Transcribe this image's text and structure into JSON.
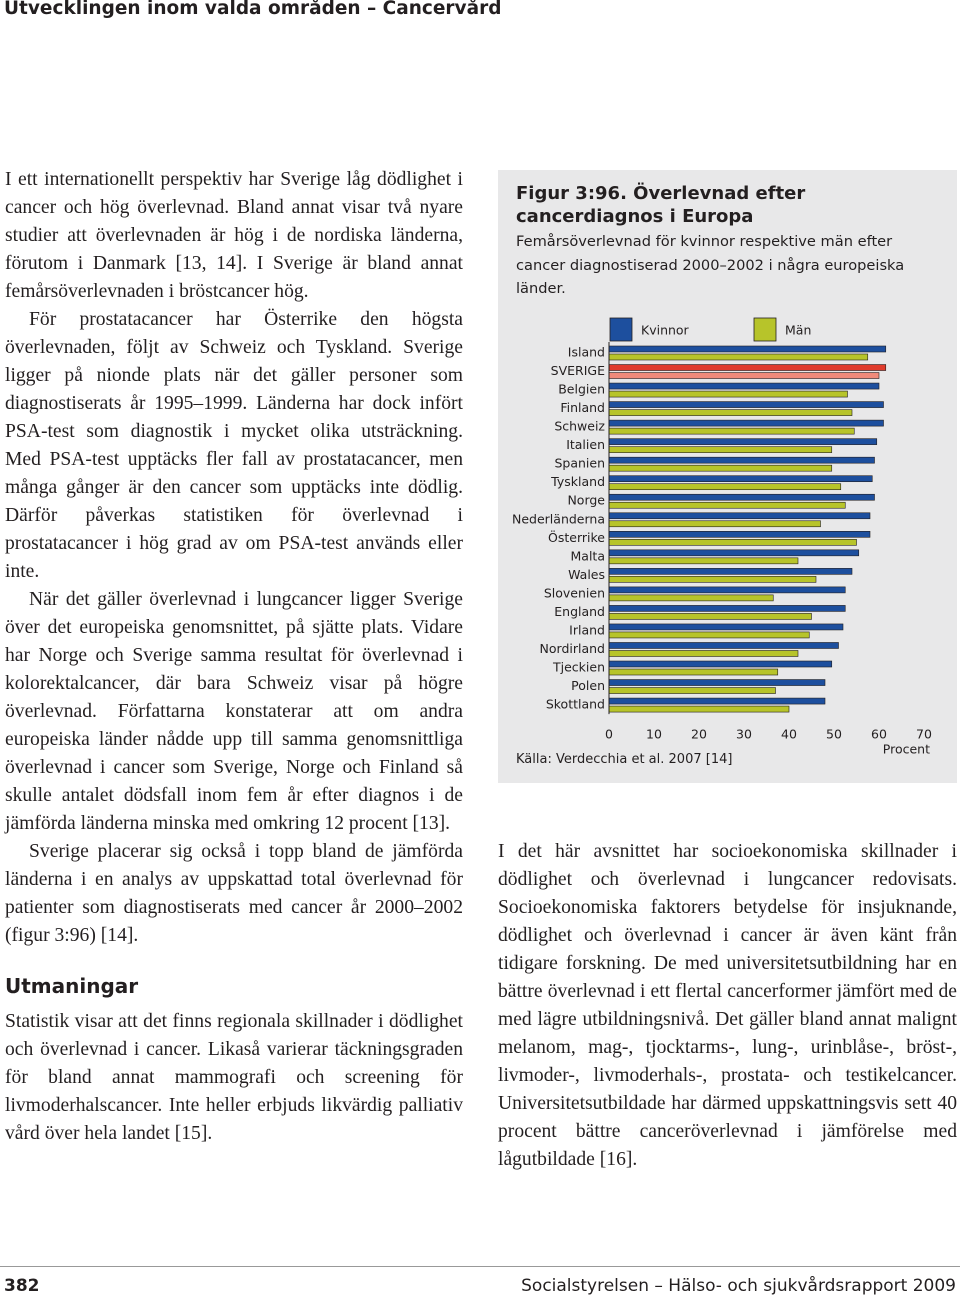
{
  "header": {
    "title": "Utvecklingen inom valda områden – Cancervård"
  },
  "left_column": {
    "paragraphs": [
      "I ett internationellt perspektiv har Sverige låg dödlighet i cancer och hög överlevnad. Bland annat visar två nyare studier att överlevnaden är hög i de nordiska länderna, förutom i Danmark [13, 14]. I Sverige är bland annat femårsöverlevnaden i bröstcancer hög.",
      "För prostatacancer har Österrike den högsta överlevnaden, följt av Schweiz och Tyskland. Sverige ligger på nionde plats när det gäller personer som diagnostiserats år 1995–1999. Länderna har dock infört PSA-test som diagnostik i mycket olika utsträckning. Med PSA-test upptäcks fler fall av prostatacancer, men många gånger är den cancer som upptäcks inte dödlig. Därför påverkas statistiken för överlevnad i prostatacancer i hög grad av om PSA-test används eller inte.",
      "När det gäller överlevnad i lungcancer ligger Sverige över det europeiska genomsnittet, på sjätte plats. Vidare har Norge och Sverige samma resultat för överlevnad i kolorektalcancer, där bara Schweiz visar på högre överlevnad. Författarna konstaterar att om andra europeiska länder nådde upp till samma genomsnittliga överlevnad i cancer som Sverige, Norge och Finland så skulle antalet dödsfall inom fem år efter diagnos i de jämförda länderna minska med omkring 12 procent [13].",
      "Sverige placerar sig också i topp bland de jämförda länderna i en analys av uppskattad total överlevnad för patienter som diagnostiserats med cancer år 2000–2002 (figur 3:96) [14]."
    ],
    "heading": "Utmaningar",
    "closing": "Statistik visar att det finns regionala skillnader i dödlighet och överlevnad i cancer. Likaså varierar täckningsgraden för bland annat mammografi och screening för livmoderhalscancer. Inte heller erbjuds likvärdig palliativ vård över hela landet [15]."
  },
  "chart_data": {
    "type": "bar",
    "orientation": "horizontal",
    "title": "Figur 3:96. Överlevnad efter cancerdiagnos i Europa",
    "subtitle": "Femårsöverlevnad för kvinnor respektive män efter cancer diagnostiserad 2000–2002 i några europeiska länder.",
    "source": "Källa: Verdecchia et al. 2007 [14]",
    "xlabel": "Procent",
    "categories": [
      "Island",
      "SVERIGE",
      "Belgien",
      "Finland",
      "Schweiz",
      "Italien",
      "Spanien",
      "Tyskland",
      "Norge",
      "Nederländerna",
      "Österrike",
      "Malta",
      "Wales",
      "Slovenien",
      "England",
      "Irland",
      "Nordirland",
      "Tjeckien",
      "Polen",
      "Skottland"
    ],
    "series": [
      {
        "name": "Kvinnor",
        "color": "#1d4f9e",
        "highlight_color": "#e03b2c",
        "values": [
          61.5,
          61.5,
          60,
          61,
          61,
          59.5,
          59,
          58.5,
          59,
          58,
          58,
          55.5,
          54,
          52.5,
          52.5,
          52,
          51,
          49.5,
          48,
          48
        ]
      },
      {
        "name": "Män",
        "color": "#b7c42a",
        "highlight_color": "#f08a7a",
        "values": [
          57.5,
          60,
          53,
          54,
          54.5,
          49.5,
          49.5,
          51.5,
          52.5,
          47,
          55,
          42,
          46,
          36.5,
          45,
          44.5,
          42,
          37.5,
          37,
          40
        ]
      }
    ],
    "highlight": 1,
    "xlim": [
      0,
      70
    ],
    "xticks": [
      0,
      10,
      20,
      30,
      40,
      50,
      60,
      70
    ],
    "grid": false
  },
  "right_column": {
    "paragraph": "I det här avsnittet har socioekonomiska skillnader i dödlighet och överlevnad i lungcancer redovisats. Socioekonomiska faktorers betydelse för insjuknande, dödlighet och överlevnad i cancer är även känt från tidigare forskning. De med universitetsutbildning har en bättre överlevnad i ett flertal cancerformer jämfört med de med lägre utbildningsnivå. Det gäller bland annat malignt melanom, mag-, tjocktarms-, lung-, urinblåse-, bröst-, livmoder-, livmoderhals-, prostata- och testikelcancer. Universitetsutbildade har därmed uppskattningsvis sett 40 procent bättre canceröverlevnad i jämförelse med lågutbildade [16]."
  },
  "footer": {
    "page": "382",
    "publication": "Socialstyrelsen – Hälso- och sjukvårdsrapport 2009"
  }
}
